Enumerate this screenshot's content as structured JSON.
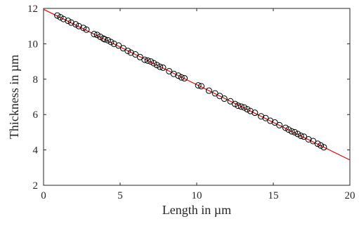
{
  "chart_data": {
    "type": "scatter",
    "title": "",
    "xlabel": "Length in µm",
    "ylabel": "Thickness in µm",
    "xlim": [
      0,
      20
    ],
    "ylim": [
      2,
      12
    ],
    "xticks": [
      0,
      5,
      10,
      15,
      20
    ],
    "yticks": [
      2,
      4,
      6,
      8,
      10,
      12
    ],
    "xtick_labels": [
      "0",
      "5",
      "10",
      "15",
      "20"
    ],
    "ytick_labels": [
      "2",
      "4",
      "6",
      "8",
      "10",
      "12"
    ],
    "grid": false,
    "legend": "none",
    "colors": {
      "points": "#000000",
      "fit_line": "#d42020",
      "axes": "#262626"
    },
    "fit_line": {
      "x": [
        0,
        20
      ],
      "y": [
        11.95,
        3.43
      ]
    },
    "series": [
      {
        "marker": "circle-open",
        "x": [
          0.9,
          1.1,
          1.3,
          1.6,
          1.8,
          2.1,
          2.3,
          2.6,
          2.8,
          3.3,
          3.5,
          3.7,
          3.9,
          4.0,
          4.2,
          4.4,
          4.6,
          4.9,
          5.2,
          5.5,
          5.7,
          6.0,
          6.3,
          6.6,
          6.8,
          7.0,
          7.2,
          7.4,
          7.6,
          7.8,
          8.2,
          8.5,
          8.8,
          9.0,
          9.2,
          10.1,
          10.3,
          10.8,
          11.2,
          11.5,
          11.8,
          12.2,
          12.5,
          12.7,
          12.9,
          13.1,
          13.3,
          13.5,
          13.8,
          14.2,
          14.5,
          14.8,
          15.1,
          15.4,
          15.8,
          16.0,
          16.2,
          16.4,
          16.6,
          16.8,
          17.0,
          17.3,
          17.6,
          17.9,
          18.1,
          18.3
        ],
        "y": [
          11.6,
          11.5,
          11.4,
          11.3,
          11.2,
          11.1,
          11.0,
          10.9,
          10.8,
          10.55,
          10.5,
          10.4,
          10.3,
          10.25,
          10.2,
          10.1,
          10.0,
          9.9,
          9.75,
          9.6,
          9.5,
          9.4,
          9.25,
          9.1,
          9.05,
          9.0,
          8.9,
          8.8,
          8.7,
          8.65,
          8.45,
          8.3,
          8.2,
          8.1,
          8.05,
          7.65,
          7.6,
          7.35,
          7.2,
          7.05,
          6.9,
          6.75,
          6.6,
          6.5,
          6.45,
          6.4,
          6.3,
          6.2,
          6.1,
          5.9,
          5.8,
          5.65,
          5.55,
          5.4,
          5.25,
          5.15,
          5.05,
          5.0,
          4.9,
          4.8,
          4.75,
          4.6,
          4.5,
          4.35,
          4.25,
          4.15
        ]
      }
    ]
  }
}
